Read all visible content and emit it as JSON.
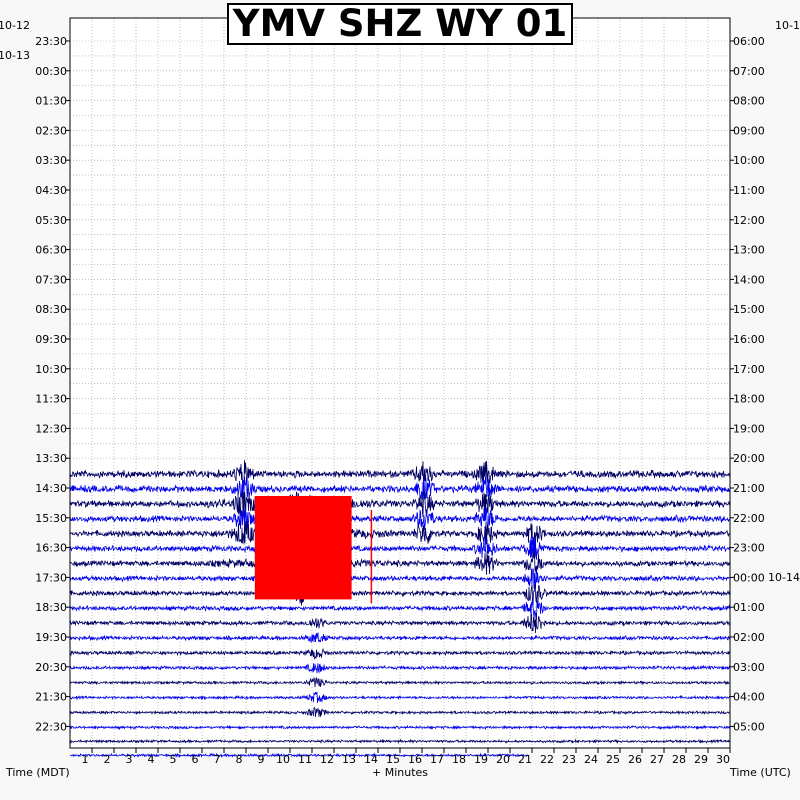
{
  "chart_data": {
    "type": "line",
    "title": "YMV SHZ WY 01",
    "xlabel": "+ Minutes",
    "left_axis_label": "Time (MDT)",
    "right_axis_label": "Time (UTC)",
    "xlim": [
      0,
      30
    ],
    "x_ticks": [
      "1",
      "2",
      "3",
      "4",
      "5",
      "6",
      "7",
      "8",
      "9",
      "10",
      "11",
      "12",
      "13",
      "14",
      "15",
      "16",
      "17",
      "18",
      "19",
      "20",
      "21",
      "22",
      "23",
      "24",
      "25",
      "26",
      "27",
      "28",
      "29",
      "30"
    ],
    "left_date_labels": [
      "10-12",
      "10-13"
    ],
    "right_date_labels": [
      "10-1",
      "10-14"
    ],
    "row_labels_mdt": [
      "23:30",
      "00:30",
      "01:30",
      "02:30",
      "03:30",
      "04:30",
      "05:30",
      "06:30",
      "07:30",
      "08:30",
      "09:30",
      "10:30",
      "11:30",
      "12:30",
      "13:30",
      "14:30",
      "15:30",
      "16:30",
      "17:30",
      "18:30",
      "19:30",
      "20:30",
      "21:30",
      "22:30"
    ],
    "row_labels_utc": [
      "06:00",
      "07:00",
      "08:00",
      "09:00",
      "10:00",
      "11:00",
      "12:00",
      "13:00",
      "14:00",
      "15:00",
      "16:00",
      "17:00",
      "18:00",
      "19:00",
      "20:00",
      "21:00",
      "22:00",
      "23:00",
      "00:00",
      "01:00",
      "02:00",
      "03:00",
      "04:00",
      "05:00"
    ],
    "grid": true,
    "trace_colors": [
      "#000066",
      "#0000ee"
    ],
    "clip_color": "#ff0000",
    "trace_rows_start_label": "14:30",
    "trace_end_minute_last_row": 20.8,
    "events": [
      {
        "row": "14:30",
        "minute": 7.9,
        "amplitude": "moderate"
      },
      {
        "row": "14:30",
        "minute": 16.1,
        "amplitude": "moderate"
      },
      {
        "row": "15:30",
        "minute": 18.9,
        "amplitude": "moderate"
      },
      {
        "row": "16:30",
        "minute": 10.5,
        "amplitude": "clipped"
      },
      {
        "row": "17:30",
        "minute": 21.1,
        "amplitude": "moderate"
      },
      {
        "row": "20:30",
        "minute": 11.2,
        "amplitude": "small"
      }
    ],
    "clipped_region_minutes": [
      8.4,
      12.8
    ],
    "clipped_spike_minute": 13.7
  }
}
